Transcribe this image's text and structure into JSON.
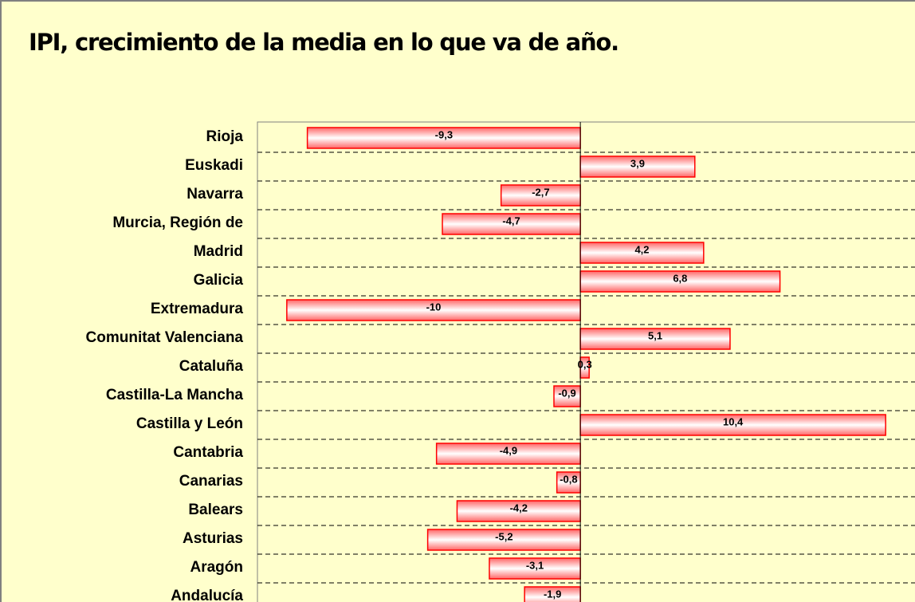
{
  "chart_data": {
    "type": "barh",
    "title": "IPI, crecimiento de la media en lo que va de año.",
    "categories": [
      "Rioja",
      "Euskadi",
      "Navarra",
      "Murcia, Región de",
      "Madrid",
      "Galicia",
      "Extremadura",
      "Comunitat Valenciana",
      "Cataluña",
      "Castilla-La Mancha",
      "Castilla y León",
      "Cantabria",
      "Canarias",
      "Balears",
      "Asturias",
      "Aragón",
      "Andalucía"
    ],
    "values": [
      -9.3,
      3.9,
      -2.7,
      -4.7,
      4.2,
      6.8,
      -10,
      5.1,
      0.3,
      -0.9,
      10.4,
      -4.9,
      -0.8,
      -4.2,
      -5.2,
      -3.1,
      -1.9
    ],
    "value_labels": [
      "-9,3",
      "3,9",
      "-2,7",
      "-4,7",
      "4,2",
      "6,8",
      "-10",
      "5,1",
      "0,3",
      "-0,9",
      "10,4",
      "-4,9",
      "-0,8",
      "-4,2",
      "-5,2",
      "-3,1",
      "-1,9"
    ],
    "color": "#ff0000",
    "xlim": [
      -11,
      11.4
    ],
    "grid": true
  }
}
